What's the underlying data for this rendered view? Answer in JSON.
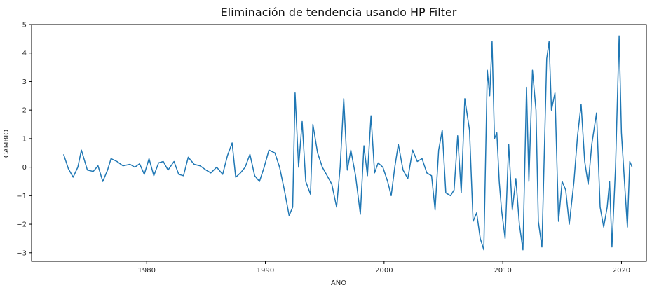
{
  "chart_data": {
    "type": "line",
    "title": "Eliminación de tendencia usando HP Filter",
    "xlabel": "AÑO",
    "ylabel": "CAMBIO",
    "xlim": [
      1970.3,
      2022.1
    ],
    "ylim": [
      -3.3,
      5
    ],
    "xticks": [
      1980,
      1990,
      2000,
      2010,
      2020
    ],
    "yticks": [
      -3,
      -2,
      -1,
      0,
      1,
      2,
      3,
      4,
      5
    ],
    "grid": false,
    "legend": "none",
    "colors": {
      "line": "#1f77b4",
      "axes": "#000000"
    },
    "series": [
      {
        "values": [
          [
            1973.0,
            0.45
          ],
          [
            1973.4,
            -0.05
          ],
          [
            1973.8,
            -0.35
          ],
          [
            1974.2,
            0.0
          ],
          [
            1974.5,
            0.6
          ],
          [
            1975.0,
            -0.1
          ],
          [
            1975.5,
            -0.15
          ],
          [
            1975.9,
            0.05
          ],
          [
            1976.3,
            -0.5
          ],
          [
            1976.7,
            -0.1
          ],
          [
            1977.0,
            0.3
          ],
          [
            1977.5,
            0.2
          ],
          [
            1978.0,
            0.05
          ],
          [
            1978.6,
            0.1
          ],
          [
            1979.0,
            0.0
          ],
          [
            1979.4,
            0.12
          ],
          [
            1979.8,
            -0.25
          ],
          [
            1980.2,
            0.3
          ],
          [
            1980.6,
            -0.3
          ],
          [
            1981.0,
            0.15
          ],
          [
            1981.4,
            0.2
          ],
          [
            1981.8,
            -0.1
          ],
          [
            1982.3,
            0.2
          ],
          [
            1982.7,
            -0.25
          ],
          [
            1983.1,
            -0.3
          ],
          [
            1983.5,
            0.35
          ],
          [
            1984.0,
            0.1
          ],
          [
            1984.5,
            0.05
          ],
          [
            1985.0,
            -0.1
          ],
          [
            1985.4,
            -0.2
          ],
          [
            1985.9,
            0.0
          ],
          [
            1986.4,
            -0.25
          ],
          [
            1986.8,
            0.4
          ],
          [
            1987.2,
            0.85
          ],
          [
            1987.5,
            -0.35
          ],
          [
            1987.9,
            -0.2
          ],
          [
            1988.3,
            0.0
          ],
          [
            1988.7,
            0.45
          ],
          [
            1989.1,
            -0.3
          ],
          [
            1989.5,
            -0.5
          ],
          [
            1989.9,
            0.0
          ],
          [
            1990.3,
            0.6
          ],
          [
            1990.8,
            0.5
          ],
          [
            1991.2,
            0.0
          ],
          [
            1991.6,
            -0.8
          ],
          [
            1992.0,
            -1.7
          ],
          [
            1992.3,
            -1.4
          ],
          [
            1992.5,
            2.6
          ],
          [
            1992.8,
            0.0
          ],
          [
            1993.1,
            1.6
          ],
          [
            1993.4,
            -0.5
          ],
          [
            1993.8,
            -0.95
          ],
          [
            1994.0,
            1.5
          ],
          [
            1994.4,
            0.5
          ],
          [
            1994.8,
            0.0
          ],
          [
            1995.2,
            -0.3
          ],
          [
            1995.6,
            -0.6
          ],
          [
            1996.0,
            -1.4
          ],
          [
            1996.3,
            0.0
          ],
          [
            1996.6,
            2.4
          ],
          [
            1996.9,
            -0.1
          ],
          [
            1997.2,
            0.6
          ],
          [
            1997.6,
            -0.3
          ],
          [
            1998.0,
            -1.65
          ],
          [
            1998.3,
            0.75
          ],
          [
            1998.6,
            -0.3
          ],
          [
            1998.9,
            1.8
          ],
          [
            1999.2,
            -0.2
          ],
          [
            1999.5,
            0.15
          ],
          [
            1999.9,
            0.0
          ],
          [
            2000.3,
            -0.5
          ],
          [
            2000.6,
            -1.0
          ],
          [
            2000.9,
            0.0
          ],
          [
            2001.2,
            0.8
          ],
          [
            2001.6,
            -0.1
          ],
          [
            2002.0,
            -0.4
          ],
          [
            2002.4,
            0.6
          ],
          [
            2002.8,
            0.2
          ],
          [
            2003.2,
            0.3
          ],
          [
            2003.6,
            -0.2
          ],
          [
            2004.0,
            -0.3
          ],
          [
            2004.3,
            -1.5
          ],
          [
            2004.6,
            0.6
          ],
          [
            2004.9,
            1.3
          ],
          [
            2005.2,
            -0.9
          ],
          [
            2005.6,
            -1.0
          ],
          [
            2005.9,
            -0.8
          ],
          [
            2006.2,
            1.1
          ],
          [
            2006.5,
            -0.9
          ],
          [
            2006.8,
            2.4
          ],
          [
            2007.2,
            1.3
          ],
          [
            2007.5,
            -1.9
          ],
          [
            2007.8,
            -1.6
          ],
          [
            2008.1,
            -2.5
          ],
          [
            2008.4,
            -2.9
          ],
          [
            2008.7,
            3.4
          ],
          [
            2008.9,
            2.5
          ],
          [
            2009.1,
            4.4
          ],
          [
            2009.3,
            1.0
          ],
          [
            2009.5,
            1.2
          ],
          [
            2009.7,
            -0.5
          ],
          [
            2009.9,
            -1.5
          ],
          [
            2010.2,
            -2.5
          ],
          [
            2010.5,
            0.8
          ],
          [
            2010.8,
            -1.5
          ],
          [
            2011.1,
            -0.4
          ],
          [
            2011.4,
            -2.0
          ],
          [
            2011.7,
            -2.9
          ],
          [
            2012.0,
            2.8
          ],
          [
            2012.2,
            -0.5
          ],
          [
            2012.5,
            3.4
          ],
          [
            2012.8,
            2.0
          ],
          [
            2013.0,
            -1.9
          ],
          [
            2013.3,
            -2.8
          ],
          [
            2013.7,
            3.8
          ],
          [
            2013.9,
            4.4
          ],
          [
            2014.1,
            2.0
          ],
          [
            2014.4,
            2.6
          ],
          [
            2014.7,
            -1.9
          ],
          [
            2015.0,
            -0.5
          ],
          [
            2015.3,
            -0.8
          ],
          [
            2015.6,
            -2.0
          ],
          [
            2016.0,
            -0.5
          ],
          [
            2016.3,
            1.1
          ],
          [
            2016.6,
            2.2
          ],
          [
            2016.9,
            0.2
          ],
          [
            2017.2,
            -0.6
          ],
          [
            2017.5,
            0.8
          ],
          [
            2017.9,
            1.9
          ],
          [
            2018.2,
            -1.4
          ],
          [
            2018.5,
            -2.1
          ],
          [
            2018.8,
            -1.4
          ],
          [
            2019.0,
            -0.5
          ],
          [
            2019.2,
            -2.8
          ],
          [
            2019.5,
            0.0
          ],
          [
            2019.8,
            4.6
          ],
          [
            2020.0,
            1.2
          ],
          [
            2020.3,
            -0.8
          ],
          [
            2020.5,
            -2.1
          ],
          [
            2020.7,
            0.2
          ],
          [
            2020.9,
            0.0
          ]
        ]
      }
    ]
  }
}
